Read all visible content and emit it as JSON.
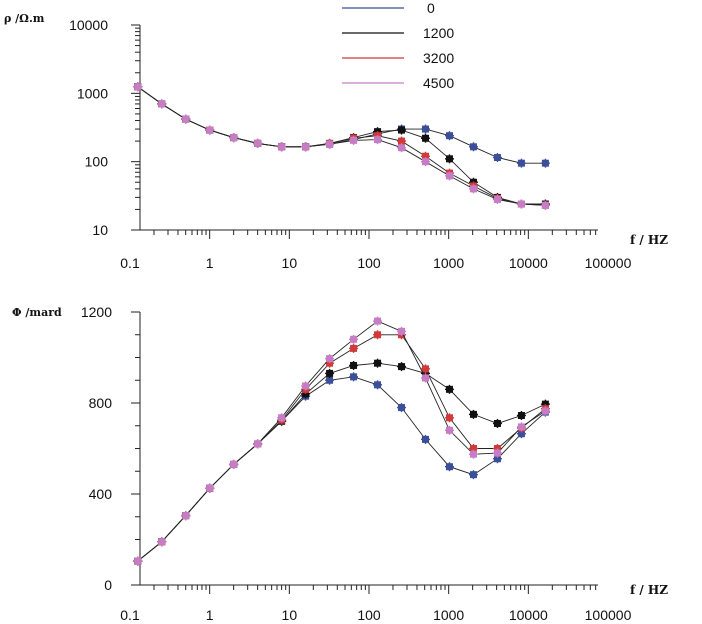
{
  "chart_data": [
    {
      "type": "line",
      "title": "",
      "ylabel": "ρ /Ω.m",
      "xlabel": "f / HZ",
      "xscale": "log",
      "yscale": "log",
      "xlim": [
        0.1,
        100000
      ],
      "ylim": [
        10,
        10000
      ],
      "xticks": [
        "0.1",
        "1",
        "10",
        "100",
        "1000",
        "10000",
        "100000"
      ],
      "yticks": [
        "10",
        "100",
        "1000",
        "10000"
      ],
      "legend_position": "top",
      "series": [
        {
          "name": "0",
          "color": "#3b4f9a",
          "marker": "cross",
          "x": [
            0.125,
            0.25,
            0.5,
            1,
            2,
            4,
            8,
            16,
            32,
            64,
            128,
            256,
            512,
            1024,
            2048,
            4096,
            8192,
            16384
          ],
          "values": [
            1250,
            700,
            420,
            290,
            225,
            185,
            165,
            165,
            180,
            210,
            255,
            300,
            300,
            240,
            165,
            115,
            95,
            95
          ]
        },
        {
          "name": "1200",
          "color": "#111111",
          "marker": "cross",
          "x": [
            0.125,
            0.25,
            0.5,
            1,
            2,
            4,
            8,
            16,
            32,
            64,
            128,
            256,
            512,
            1024,
            2048,
            4096,
            8192,
            16384
          ],
          "values": [
            1250,
            700,
            420,
            290,
            225,
            185,
            165,
            165,
            185,
            225,
            275,
            290,
            220,
            110,
            50,
            30,
            24,
            24
          ]
        },
        {
          "name": "3200",
          "color": "#d23a3a",
          "marker": "cross",
          "x": [
            0.125,
            0.25,
            0.5,
            1,
            2,
            4,
            8,
            16,
            32,
            64,
            128,
            256,
            512,
            1024,
            2048,
            4096,
            8192,
            16384
          ],
          "values": [
            1250,
            700,
            420,
            290,
            225,
            185,
            165,
            165,
            185,
            220,
            240,
            200,
            120,
            68,
            44,
            29,
            24,
            23
          ]
        },
        {
          "name": "4500",
          "color": "#c77dc4",
          "marker": "cross",
          "x": [
            0.125,
            0.25,
            0.5,
            1,
            2,
            4,
            8,
            16,
            32,
            64,
            128,
            256,
            512,
            1024,
            2048,
            4096,
            8192,
            16384
          ],
          "values": [
            1250,
            700,
            420,
            290,
            225,
            185,
            165,
            165,
            180,
            205,
            210,
            160,
            100,
            62,
            40,
            28,
            24,
            23
          ]
        }
      ]
    },
    {
      "type": "line",
      "title": "",
      "ylabel": "Φ /mard",
      "xlabel": "f / HZ",
      "xscale": "log",
      "xlim": [
        0.1,
        100000
      ],
      "ylim": [
        0,
        1200
      ],
      "xticks": [
        "0.1",
        "1",
        "10",
        "100",
        "1000",
        "10000",
        "100000"
      ],
      "yticks": [
        "0",
        "400",
        "800",
        "1200"
      ],
      "series": [
        {
          "name": "0",
          "color": "#3b4f9a",
          "marker": "cross",
          "x": [
            0.125,
            0.25,
            0.5,
            1,
            2,
            4,
            8,
            16,
            32,
            64,
            128,
            256,
            512,
            1024,
            2048,
            4096,
            8192,
            16384
          ],
          "values": [
            105,
            190,
            305,
            425,
            530,
            620,
            720,
            830,
            900,
            915,
            880,
            780,
            640,
            520,
            485,
            555,
            665,
            760
          ]
        },
        {
          "name": "1200",
          "color": "#111111",
          "marker": "cross",
          "x": [
            0.125,
            0.25,
            0.5,
            1,
            2,
            4,
            8,
            16,
            32,
            64,
            128,
            256,
            512,
            1024,
            2048,
            4096,
            8192,
            16384
          ],
          "values": [
            105,
            190,
            305,
            425,
            530,
            620,
            720,
            840,
            930,
            965,
            975,
            960,
            930,
            860,
            750,
            710,
            745,
            795
          ]
        },
        {
          "name": "3200",
          "color": "#d23a3a",
          "marker": "cross",
          "x": [
            0.125,
            0.25,
            0.5,
            1,
            2,
            4,
            8,
            16,
            32,
            64,
            128,
            256,
            512,
            1024,
            2048,
            4096,
            8192,
            16384
          ],
          "values": [
            105,
            190,
            305,
            425,
            530,
            620,
            725,
            860,
            975,
            1040,
            1100,
            1100,
            950,
            735,
            600,
            600,
            690,
            775
          ]
        },
        {
          "name": "4500",
          "color": "#c77dc4",
          "marker": "cross",
          "x": [
            0.125,
            0.25,
            0.5,
            1,
            2,
            4,
            8,
            16,
            32,
            64,
            128,
            256,
            512,
            1024,
            2048,
            4096,
            8192,
            16384
          ],
          "values": [
            105,
            190,
            305,
            425,
            530,
            620,
            735,
            875,
            995,
            1080,
            1160,
            1115,
            910,
            680,
            575,
            580,
            695,
            765
          ]
        }
      ]
    }
  ]
}
